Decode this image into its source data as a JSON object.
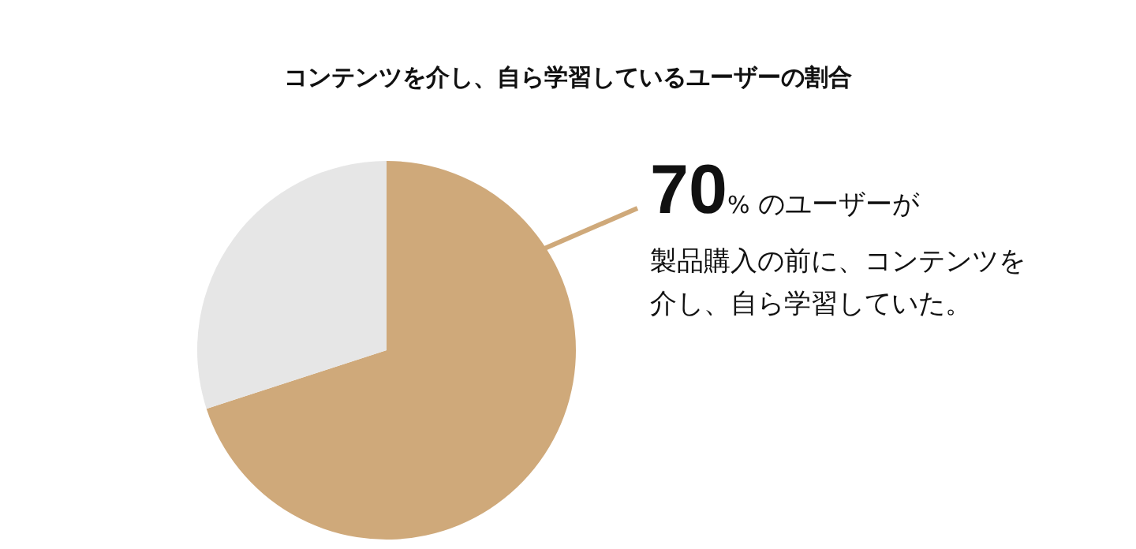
{
  "chart_data": {
    "type": "pie",
    "title": "コンテンツを介し、自ら学習しているユーザーの割合",
    "categories": [
      null,
      null
    ],
    "values": [
      70,
      30
    ],
    "colors": [
      "#cfa97a",
      "#e6e6e6"
    ],
    "annotations": [
      "70% のユーザーが",
      "製品購入の前に、コンテンツを",
      "介し、自ら学習していた。"
    ],
    "legend": false
  }
}
